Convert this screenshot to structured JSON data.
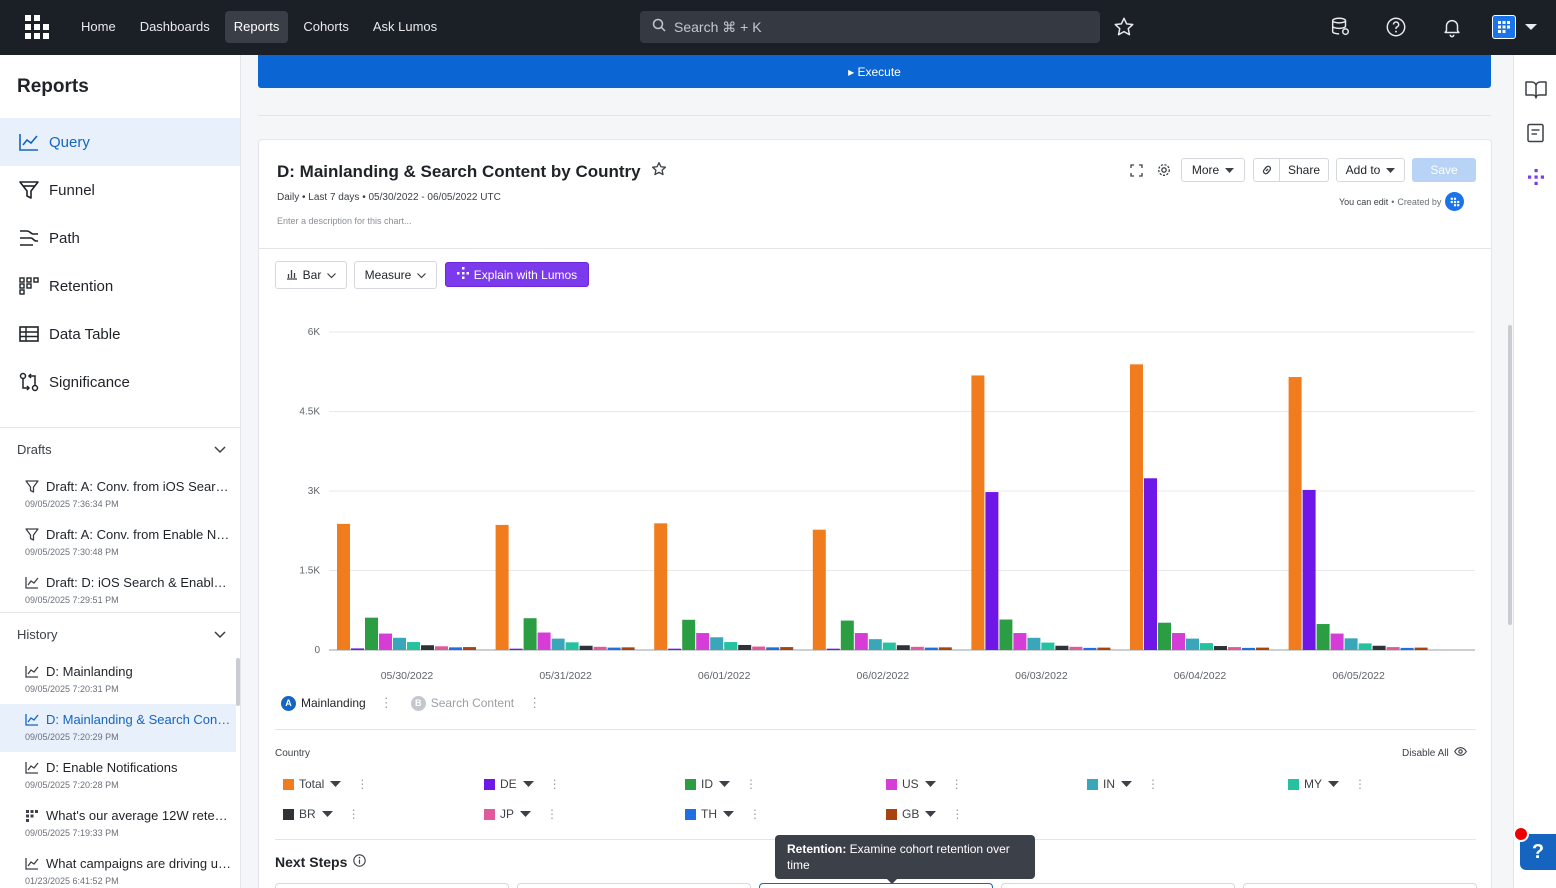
{
  "nav": {
    "links": [
      {
        "label": "Home",
        "active": false
      },
      {
        "label": "Dashboards",
        "active": false
      },
      {
        "label": "Reports",
        "active": true
      },
      {
        "label": "Cohorts",
        "active": false
      },
      {
        "label": "Ask Lumos",
        "active": false
      }
    ],
    "search_placeholder": "Search ⌘ + K",
    "icons": [
      "star-icon",
      "database-icon",
      "help-icon",
      "bell-icon",
      "app-switcher-icon",
      "chevron-down-icon"
    ]
  },
  "sidebar": {
    "title": "Reports",
    "report_types": [
      {
        "label": "Query",
        "icon": "line-chart-icon",
        "active": true
      },
      {
        "label": "Funnel",
        "icon": "funnel-icon",
        "active": false
      },
      {
        "label": "Path",
        "icon": "path-icon",
        "active": false
      },
      {
        "label": "Retention",
        "icon": "retention-icon",
        "active": false
      },
      {
        "label": "Data Table",
        "icon": "table-icon",
        "active": false
      },
      {
        "label": "Significance",
        "icon": "significance-icon",
        "active": false
      }
    ],
    "drafts": {
      "title": "Drafts",
      "items": [
        {
          "name": "Draft: A: Conv. from iOS Search ...",
          "time": "09/05/2025 7:36:34 PM",
          "icon": "funnel-icon"
        },
        {
          "name": "Draft: A: Conv. from Enable Noti...",
          "time": "09/05/2025 7:30:48 PM",
          "icon": "funnel-icon"
        },
        {
          "name": "Draft: D: iOS Search & Enable N...",
          "time": "09/05/2025 7:29:51 PM",
          "icon": "line-chart-icon"
        }
      ]
    },
    "history": {
      "title": "History",
      "items": [
        {
          "name": "D: Mainlanding",
          "time": "09/05/2025 7:20:31 PM",
          "icon": "line-chart-icon",
          "active": false
        },
        {
          "name": "D: Mainlanding & Search Conte...",
          "time": "09/05/2025 7:20:29 PM",
          "icon": "line-chart-icon",
          "active": true
        },
        {
          "name": "D: Enable Notifications",
          "time": "09/05/2025 7:20:28 PM",
          "icon": "line-chart-icon",
          "active": false
        },
        {
          "name": "What's our average 12W retenti...",
          "time": "09/05/2025 7:19:33 PM",
          "icon": "retention-icon",
          "active": false
        },
        {
          "name": "What campaigns are driving us...",
          "time": "01/23/2025 6:41:52 PM",
          "icon": "line-chart-icon",
          "active": false
        }
      ]
    }
  },
  "main": {
    "execute_label": "▸ Execute",
    "chart_title": "D: Mainlanding & Search Content by Country",
    "meta": "Daily • Last 7 days • 05/30/2022 - 06/05/2022 UTC",
    "description_placeholder": "Enter a description for this chart...",
    "buttons": {
      "more": "More",
      "share": "Share",
      "add_to": "Add to",
      "save": "Save"
    },
    "edit_meta": {
      "can_edit": "You can edit",
      "created_by": "Created by"
    },
    "toolbar": {
      "chart_type": "Bar",
      "measure": "Measure",
      "explain": "Explain with Lumos"
    },
    "events": [
      {
        "letter": "A",
        "label": "Mainlanding",
        "color": "#1565c0"
      },
      {
        "letter": "B",
        "label": "Search Content",
        "color": "#c4c8ce"
      }
    ],
    "country_label": "Country",
    "disable_all": "Disable All",
    "next_steps": "Next Steps",
    "tooltip": {
      "bold": "Retention:",
      "text": "Examine cohort retention over time"
    }
  },
  "chart_data": {
    "type": "bar",
    "categories": [
      "05/30/2022",
      "05/31/2022",
      "06/01/2022",
      "06/02/2022",
      "06/03/2022",
      "06/04/2022",
      "06/05/2022"
    ],
    "ylim": [
      0,
      6000
    ],
    "yticks": [
      "0",
      "1.5K",
      "3K",
      "4.5K",
      "6K"
    ],
    "ytick_values": [
      0,
      1500,
      3000,
      4500,
      6000
    ],
    "series": [
      {
        "name": "Total",
        "color": "#f07c1d",
        "values": [
          2380,
          2360,
          2390,
          2270,
          5180,
          5390,
          5150
        ]
      },
      {
        "name": "DE",
        "color": "#6e17e6",
        "values": [
          30,
          25,
          25,
          25,
          2980,
          3240,
          3020
        ]
      },
      {
        "name": "ID",
        "color": "#2b9e44",
        "values": [
          610,
          600,
          570,
          555,
          575,
          515,
          490
        ]
      },
      {
        "name": "US",
        "color": "#d63dd6",
        "values": [
          310,
          330,
          320,
          320,
          320,
          320,
          310
        ]
      },
      {
        "name": "IN",
        "color": "#3aa6b9",
        "values": [
          230,
          215,
          240,
          205,
          230,
          215,
          220
        ]
      },
      {
        "name": "MY",
        "color": "#26c2a0",
        "values": [
          150,
          145,
          150,
          140,
          140,
          130,
          125
        ]
      },
      {
        "name": "BR",
        "color": "#2f3236",
        "values": [
          90,
          80,
          95,
          90,
          80,
          75,
          80
        ]
      },
      {
        "name": "JP",
        "color": "#e05a9b",
        "values": [
          70,
          60,
          65,
          60,
          60,
          55,
          55
        ]
      },
      {
        "name": "TH",
        "color": "#1f6fe0",
        "values": [
          50,
          45,
          50,
          45,
          40,
          40,
          40
        ]
      },
      {
        "name": "GB",
        "color": "#a8420f",
        "values": [
          55,
          50,
          55,
          50,
          45,
          45,
          45
        ]
      }
    ]
  }
}
